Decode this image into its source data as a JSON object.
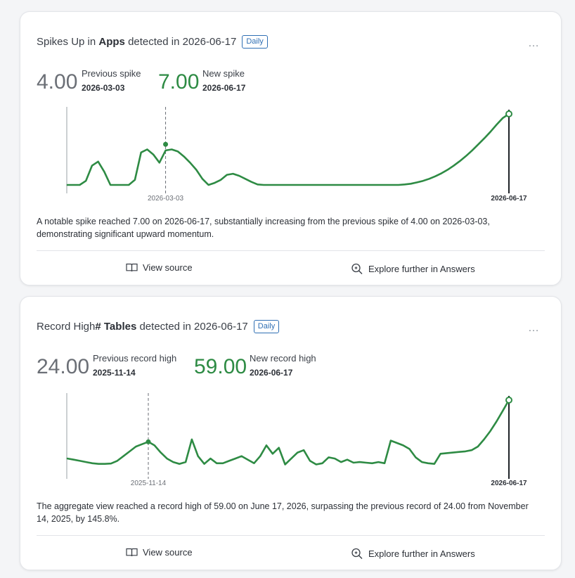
{
  "cards": [
    {
      "title_prefix": "Spikes Up in ",
      "title_bold": "Apps",
      "title_suffix": " detected in 2026-06-17",
      "badge": "Daily",
      "more": "…",
      "prev_value": "4.00",
      "prev_label": "Previous spike",
      "prev_date": "2026-03-03",
      "new_value": "7.00",
      "new_label": "New spike",
      "new_date": "2026-06-17",
      "description": "A notable spike reached 7.00 on 2026-06-17, substantially increasing from the previous spike of 4.00 on 2026-03-03, demonstrating significant upward momentum.",
      "view_source": "View source",
      "explore": "Explore further in Answers"
    },
    {
      "title_prefix": "Record High ",
      "title_bold": "# Tables",
      "title_suffix": " detected in 2026-06-17",
      "badge": "Daily",
      "more": "…",
      "prev_value": "24.00",
      "prev_label": "Previous record high",
      "prev_date": "2025-11-14",
      "new_value": "59.00",
      "new_label": "New record high",
      "new_date": "2026-06-17",
      "description": "The aggregate view reached a record high of 59.00 on June 17, 2026, surpassing the previous record of 24.00 from November 14, 2025, by 145.8%.",
      "view_source": "View source",
      "explore": "Explore further in Answers"
    }
  ],
  "colors": {
    "accent": "#2e8b44",
    "badge": "#2f6fb4",
    "muted": "#6b6f76"
  },
  "icons": {
    "view_source": "book-icon",
    "explore": "search-sparkle-icon"
  },
  "chart_data": [
    {
      "type": "line",
      "x_tick_labels": [
        "2026-03-03",
        "2026-06-17"
      ],
      "prev_marker": {
        "x": "2026-03-03",
        "y": 4.0
      },
      "new_marker": {
        "x": "2026-06-17",
        "y": 7.0
      },
      "ylim": [
        0,
        7
      ],
      "grid": false,
      "series": [
        {
          "values": [
            0,
            0,
            0,
            0.4,
            1.9,
            2.3,
            1.3,
            0,
            0,
            0,
            0,
            0.5,
            3.2,
            3.5,
            3.0,
            2.2,
            3.4,
            3.5,
            3.3,
            2.8,
            2.2,
            1.5,
            0.6,
            0,
            0.2,
            0.5,
            1.0,
            1.1,
            0.9,
            0.6,
            0.3,
            0.05,
            0,
            0,
            0,
            0,
            0,
            0,
            0,
            0,
            0,
            0,
            0,
            0,
            0,
            0,
            0,
            0,
            0,
            0,
            0,
            0,
            0,
            0,
            0,
            0.05,
            0.12,
            0.25,
            0.4,
            0.6,
            0.85,
            1.15,
            1.5,
            1.9,
            2.35,
            2.85,
            3.4,
            4.0,
            4.6,
            5.25,
            5.95,
            6.6,
            7.0
          ]
        }
      ]
    },
    {
      "type": "line",
      "x_tick_labels": [
        "2025-11-14",
        "2026-06-17"
      ],
      "prev_marker": {
        "x": "2025-11-14",
        "y": 24.0
      },
      "new_marker": {
        "x": "2026-06-17",
        "y": 59.0
      },
      "ylim": [
        0,
        59
      ],
      "grid": false,
      "series": [
        {
          "values": [
            10,
            9,
            8,
            7,
            6,
            5.5,
            5.5,
            5.8,
            8,
            12,
            16,
            20,
            22,
            24,
            21,
            15,
            10,
            7,
            5.5,
            7,
            26,
            12,
            5.5,
            10,
            6,
            6,
            8,
            10,
            12,
            9,
            6,
            12,
            21,
            14,
            19,
            5,
            10,
            15,
            17,
            8,
            5,
            6,
            11,
            10,
            7,
            9,
            6.5,
            7,
            6.5,
            6,
            7,
            6,
            25,
            23,
            21,
            18,
            11,
            7,
            6,
            5.5,
            14,
            14.5,
            15,
            15.5,
            16,
            17,
            20,
            26,
            33,
            41,
            50,
            59
          ]
        }
      ]
    }
  ]
}
